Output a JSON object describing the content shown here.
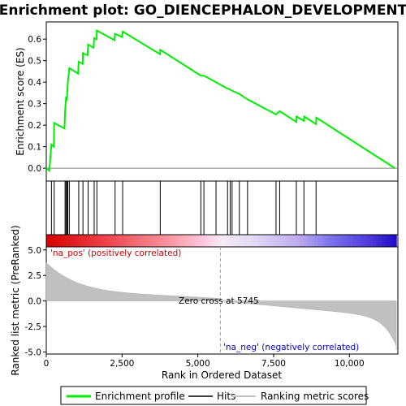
{
  "chart_data": {
    "type": "line",
    "title": "Enrichment plot: GO_DIENCEPHALON_DEVELOPMENT",
    "ylabel_top": "Enrichment score (ES)",
    "ylabel_bottom": "Ranked list metric (PreRanked)",
    "xlabel": "Rank in Ordered Dataset",
    "n_genes": 11600,
    "xlim": [
      0,
      11600
    ],
    "ylim_top": [
      -0.06,
      0.68
    ],
    "ylim_bottom": [
      -5.2,
      5.3
    ],
    "x_ticks": [
      0,
      2500,
      5000,
      7500,
      10000
    ],
    "x_tick_labels": [
      "0",
      "2,500",
      "5,000",
      "7,500",
      "10,000"
    ],
    "y_ticks_top": [
      0.0,
      0.1,
      0.2,
      0.3,
      0.4,
      0.5,
      0.6
    ],
    "y_tick_labels_top": [
      "0.0",
      "0.1",
      "0.2",
      "0.3",
      "0.4",
      "0.5",
      "0.6"
    ],
    "y_ticks_bottom": [
      -5.0,
      -2.5,
      0.0,
      2.5,
      5.0
    ],
    "y_tick_labels_bottom": [
      "-5.0",
      "-2.5",
      "0.0",
      "2.5",
      "5.0"
    ],
    "zero_cross": 5745,
    "zero_cross_label": "Zero cross at 5745",
    "pos_label": "'na_pos' (positively correlated)",
    "neg_label": "'na_neg' (negatively correlated)",
    "hits": [
      170,
      260,
      620,
      650,
      680,
      710,
      760,
      1070,
      1210,
      1380,
      1580,
      1670,
      2270,
      2520,
      3760,
      5100,
      5200,
      5600,
      5980,
      6070,
      6130,
      6370,
      6640,
      7580,
      7700,
      8250,
      8500,
      8900
    ],
    "es_points": [
      [
        0,
        0.0
      ],
      [
        100,
        -0.012
      ],
      [
        170,
        0.11
      ],
      [
        250,
        0.1
      ],
      [
        260,
        0.21
      ],
      [
        600,
        0.185
      ],
      [
        620,
        0.26
      ],
      [
        650,
        0.325
      ],
      [
        680,
        0.32
      ],
      [
        710,
        0.4
      ],
      [
        760,
        0.465
      ],
      [
        1050,
        0.44
      ],
      [
        1070,
        0.495
      ],
      [
        1200,
        0.485
      ],
      [
        1210,
        0.535
      ],
      [
        1360,
        0.525
      ],
      [
        1380,
        0.575
      ],
      [
        1560,
        0.56
      ],
      [
        1580,
        0.605
      ],
      [
        1660,
        0.6
      ],
      [
        1670,
        0.64
      ],
      [
        2250,
        0.595
      ],
      [
        2270,
        0.625
      ],
      [
        2500,
        0.61
      ],
      [
        2520,
        0.635
      ],
      [
        3750,
        0.53
      ],
      [
        3760,
        0.55
      ],
      [
        5100,
        0.43
      ],
      [
        5200,
        0.43
      ],
      [
        5600,
        0.4
      ],
      [
        5980,
        0.37
      ],
      [
        6070,
        0.365
      ],
      [
        6130,
        0.36
      ],
      [
        6370,
        0.345
      ],
      [
        6640,
        0.32
      ],
      [
        7580,
        0.25
      ],
      [
        7700,
        0.265
      ],
      [
        8250,
        0.215
      ],
      [
        8260,
        0.24
      ],
      [
        8500,
        0.22
      ],
      [
        8510,
        0.24
      ],
      [
        8900,
        0.205
      ],
      [
        8910,
        0.235
      ],
      [
        11500,
        0.0
      ]
    ],
    "legend": [
      "Enrichment profile",
      "Hits",
      "Ranking metric scores"
    ],
    "colors": {
      "enrichment": "#00ee00",
      "hits": "#000000",
      "metric_fill": "#c0c0c0",
      "pos_text": "#cc0000",
      "neg_text": "#0000cc",
      "zero_line": "#a0a0a0"
    }
  }
}
